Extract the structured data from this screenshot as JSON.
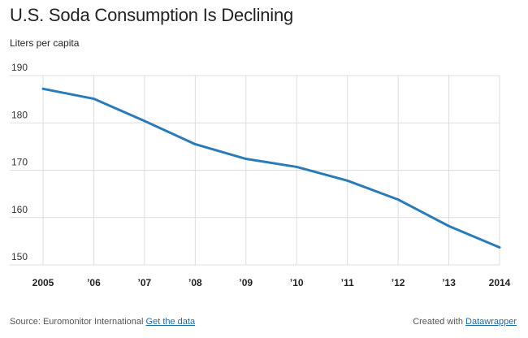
{
  "chart_data": {
    "type": "line",
    "title": "U.S. Soda Consumption Is Declining",
    "subtitle": "Liters per capita",
    "x": [
      "2005",
      "’06",
      "’07",
      "’08",
      "’09",
      "’10",
      "’11",
      "’12",
      "’13",
      "2014"
    ],
    "series": [
      {
        "values": [
          187.2,
          185.1,
          180.4,
          175.5,
          172.4,
          170.7,
          167.8,
          163.8,
          158.2,
          153.7
        ]
      }
    ],
    "ylim": [
      150,
      190
    ],
    "yticks": [
      "150",
      "160",
      "170",
      "180",
      "190"
    ],
    "grid": true,
    "legend": "none"
  },
  "colors": {
    "line": "#2b7bb9",
    "grid": "#dddddd",
    "link": "#1a6aa8"
  },
  "footer": {
    "source_label": "Source: Euromonitor International",
    "get_data_label": "Get the data",
    "created_with_label": "Created with",
    "datawrapper_label": "Datawrapper"
  }
}
